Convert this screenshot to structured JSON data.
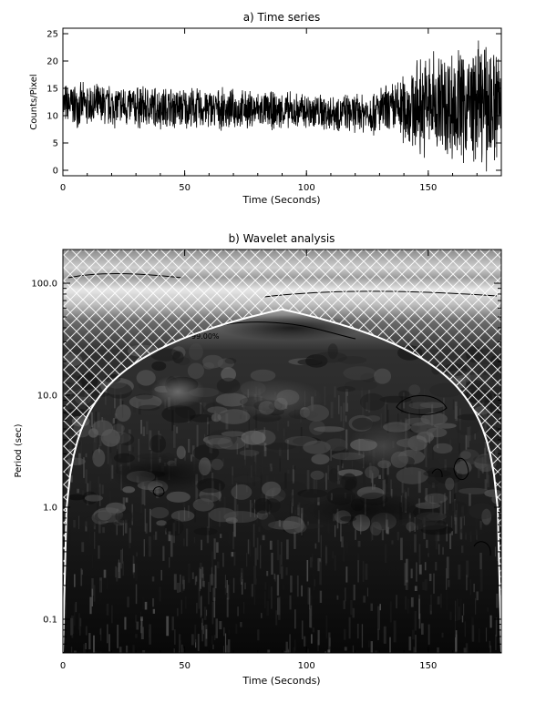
{
  "chart_data": [
    {
      "type": "line",
      "title": "a) Time series",
      "xlabel": "Time (Seconds)",
      "ylabel": "Counts/Pixel",
      "xlim": [
        0,
        180
      ],
      "ylim": [
        -1,
        26
      ],
      "xticks": [
        0,
        50,
        100,
        150
      ],
      "yticks": [
        0,
        5,
        10,
        15,
        20,
        25
      ],
      "xtick_labels": [
        "0",
        "50",
        "100",
        "150"
      ],
      "ytick_labels": [
        "0",
        "5",
        "10",
        "15",
        "20",
        "25"
      ],
      "grid": false,
      "series": [
        {
          "x_start": 0,
          "x_end": 180,
          "mean_profile": [
            {
              "x": 0,
              "mean": 12,
              "spread": 4
            },
            {
              "x": 40,
              "mean": 11.5,
              "spread": 4
            },
            {
              "x": 80,
              "mean": 11,
              "spread": 3.5
            },
            {
              "x": 120,
              "mean": 10.5,
              "spread": 3.5
            },
            {
              "x": 135,
              "mean": 11,
              "spread": 5
            },
            {
              "x": 150,
              "mean": 12,
              "spread": 10
            },
            {
              "x": 180,
              "mean": 12,
              "spread": 12
            }
          ]
        }
      ]
    },
    {
      "type": "heatmap",
      "title": "b) Wavelet analysis",
      "xlabel": "Time (Seconds)",
      "ylabel": "Period (sec)",
      "xlim": [
        0,
        180
      ],
      "ylim": [
        0.05,
        200
      ],
      "yscale": "log",
      "xticks": [
        0,
        50,
        100,
        150
      ],
      "yticks": [
        0.1,
        1.0,
        10.0,
        100.0
      ],
      "xtick_labels": [
        "0",
        "50",
        "100",
        "150"
      ],
      "ytick_labels": [
        "0.1",
        "1.0",
        "10.0",
        "100.0"
      ],
      "contour_label": "99.00%",
      "colormap": "grayscale",
      "cone_of_influence_color": "#ffffff"
    }
  ]
}
